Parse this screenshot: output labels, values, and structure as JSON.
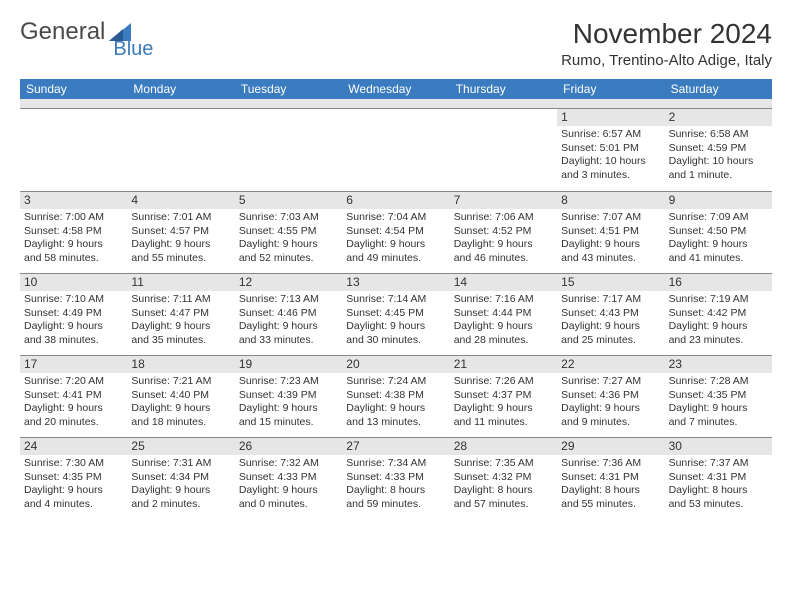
{
  "logo": {
    "text1": "General",
    "text2": "Blue"
  },
  "title": "November 2024",
  "location": "Rumo, Trentino-Alto Adige, Italy",
  "weekdays": [
    "Sunday",
    "Monday",
    "Tuesday",
    "Wednesday",
    "Thursday",
    "Friday",
    "Saturday"
  ],
  "colors": {
    "header_bar": "#3b7bbf",
    "header_text": "#ffffff",
    "daynum_bg": "#e6e6e6",
    "border": "#888888",
    "text": "#333333",
    "background": "#ffffff"
  },
  "typography": {
    "title_fontsize": 28,
    "location_fontsize": 15,
    "weekday_fontsize": 12,
    "cell_fontsize": 10.5
  },
  "layout": {
    "columns": 7,
    "rows": 5,
    "leading_blanks": 5
  },
  "days": [
    {
      "n": "1",
      "sunrise": "Sunrise: 6:57 AM",
      "sunset": "Sunset: 5:01 PM",
      "d1": "Daylight: 10 hours",
      "d2": "and 3 minutes."
    },
    {
      "n": "2",
      "sunrise": "Sunrise: 6:58 AM",
      "sunset": "Sunset: 4:59 PM",
      "d1": "Daylight: 10 hours",
      "d2": "and 1 minute."
    },
    {
      "n": "3",
      "sunrise": "Sunrise: 7:00 AM",
      "sunset": "Sunset: 4:58 PM",
      "d1": "Daylight: 9 hours",
      "d2": "and 58 minutes."
    },
    {
      "n": "4",
      "sunrise": "Sunrise: 7:01 AM",
      "sunset": "Sunset: 4:57 PM",
      "d1": "Daylight: 9 hours",
      "d2": "and 55 minutes."
    },
    {
      "n": "5",
      "sunrise": "Sunrise: 7:03 AM",
      "sunset": "Sunset: 4:55 PM",
      "d1": "Daylight: 9 hours",
      "d2": "and 52 minutes."
    },
    {
      "n": "6",
      "sunrise": "Sunrise: 7:04 AM",
      "sunset": "Sunset: 4:54 PM",
      "d1": "Daylight: 9 hours",
      "d2": "and 49 minutes."
    },
    {
      "n": "7",
      "sunrise": "Sunrise: 7:06 AM",
      "sunset": "Sunset: 4:52 PM",
      "d1": "Daylight: 9 hours",
      "d2": "and 46 minutes."
    },
    {
      "n": "8",
      "sunrise": "Sunrise: 7:07 AM",
      "sunset": "Sunset: 4:51 PM",
      "d1": "Daylight: 9 hours",
      "d2": "and 43 minutes."
    },
    {
      "n": "9",
      "sunrise": "Sunrise: 7:09 AM",
      "sunset": "Sunset: 4:50 PM",
      "d1": "Daylight: 9 hours",
      "d2": "and 41 minutes."
    },
    {
      "n": "10",
      "sunrise": "Sunrise: 7:10 AM",
      "sunset": "Sunset: 4:49 PM",
      "d1": "Daylight: 9 hours",
      "d2": "and 38 minutes."
    },
    {
      "n": "11",
      "sunrise": "Sunrise: 7:11 AM",
      "sunset": "Sunset: 4:47 PM",
      "d1": "Daylight: 9 hours",
      "d2": "and 35 minutes."
    },
    {
      "n": "12",
      "sunrise": "Sunrise: 7:13 AM",
      "sunset": "Sunset: 4:46 PM",
      "d1": "Daylight: 9 hours",
      "d2": "and 33 minutes."
    },
    {
      "n": "13",
      "sunrise": "Sunrise: 7:14 AM",
      "sunset": "Sunset: 4:45 PM",
      "d1": "Daylight: 9 hours",
      "d2": "and 30 minutes."
    },
    {
      "n": "14",
      "sunrise": "Sunrise: 7:16 AM",
      "sunset": "Sunset: 4:44 PM",
      "d1": "Daylight: 9 hours",
      "d2": "and 28 minutes."
    },
    {
      "n": "15",
      "sunrise": "Sunrise: 7:17 AM",
      "sunset": "Sunset: 4:43 PM",
      "d1": "Daylight: 9 hours",
      "d2": "and 25 minutes."
    },
    {
      "n": "16",
      "sunrise": "Sunrise: 7:19 AM",
      "sunset": "Sunset: 4:42 PM",
      "d1": "Daylight: 9 hours",
      "d2": "and 23 minutes."
    },
    {
      "n": "17",
      "sunrise": "Sunrise: 7:20 AM",
      "sunset": "Sunset: 4:41 PM",
      "d1": "Daylight: 9 hours",
      "d2": "and 20 minutes."
    },
    {
      "n": "18",
      "sunrise": "Sunrise: 7:21 AM",
      "sunset": "Sunset: 4:40 PM",
      "d1": "Daylight: 9 hours",
      "d2": "and 18 minutes."
    },
    {
      "n": "19",
      "sunrise": "Sunrise: 7:23 AM",
      "sunset": "Sunset: 4:39 PM",
      "d1": "Daylight: 9 hours",
      "d2": "and 15 minutes."
    },
    {
      "n": "20",
      "sunrise": "Sunrise: 7:24 AM",
      "sunset": "Sunset: 4:38 PM",
      "d1": "Daylight: 9 hours",
      "d2": "and 13 minutes."
    },
    {
      "n": "21",
      "sunrise": "Sunrise: 7:26 AM",
      "sunset": "Sunset: 4:37 PM",
      "d1": "Daylight: 9 hours",
      "d2": "and 11 minutes."
    },
    {
      "n": "22",
      "sunrise": "Sunrise: 7:27 AM",
      "sunset": "Sunset: 4:36 PM",
      "d1": "Daylight: 9 hours",
      "d2": "and 9 minutes."
    },
    {
      "n": "23",
      "sunrise": "Sunrise: 7:28 AM",
      "sunset": "Sunset: 4:35 PM",
      "d1": "Daylight: 9 hours",
      "d2": "and 7 minutes."
    },
    {
      "n": "24",
      "sunrise": "Sunrise: 7:30 AM",
      "sunset": "Sunset: 4:35 PM",
      "d1": "Daylight: 9 hours",
      "d2": "and 4 minutes."
    },
    {
      "n": "25",
      "sunrise": "Sunrise: 7:31 AM",
      "sunset": "Sunset: 4:34 PM",
      "d1": "Daylight: 9 hours",
      "d2": "and 2 minutes."
    },
    {
      "n": "26",
      "sunrise": "Sunrise: 7:32 AM",
      "sunset": "Sunset: 4:33 PM",
      "d1": "Daylight: 9 hours",
      "d2": "and 0 minutes."
    },
    {
      "n": "27",
      "sunrise": "Sunrise: 7:34 AM",
      "sunset": "Sunset: 4:33 PM",
      "d1": "Daylight: 8 hours",
      "d2": "and 59 minutes."
    },
    {
      "n": "28",
      "sunrise": "Sunrise: 7:35 AM",
      "sunset": "Sunset: 4:32 PM",
      "d1": "Daylight: 8 hours",
      "d2": "and 57 minutes."
    },
    {
      "n": "29",
      "sunrise": "Sunrise: 7:36 AM",
      "sunset": "Sunset: 4:31 PM",
      "d1": "Daylight: 8 hours",
      "d2": "and 55 minutes."
    },
    {
      "n": "30",
      "sunrise": "Sunrise: 7:37 AM",
      "sunset": "Sunset: 4:31 PM",
      "d1": "Daylight: 8 hours",
      "d2": "and 53 minutes."
    }
  ]
}
